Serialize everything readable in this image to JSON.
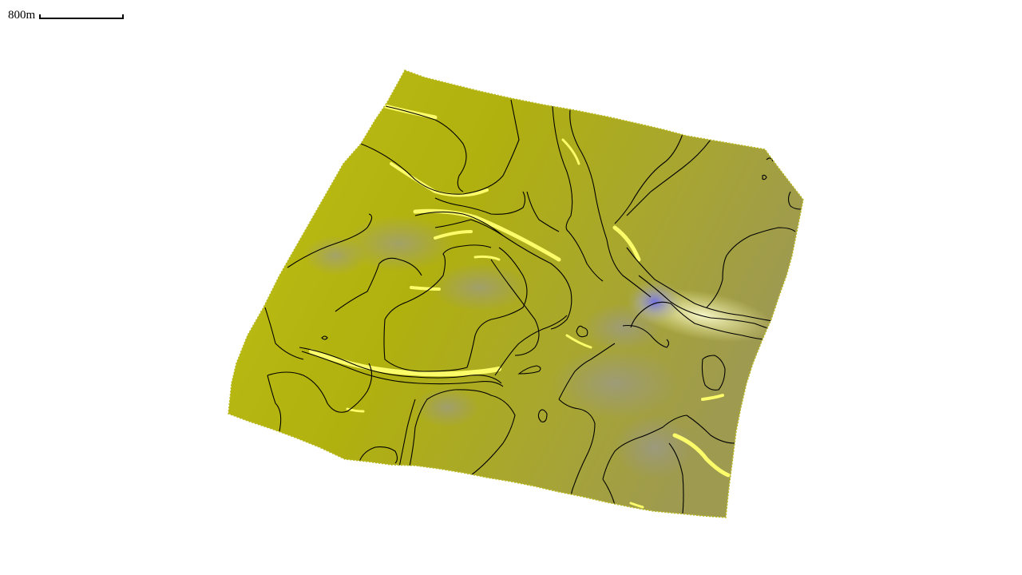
{
  "scale_bar": {
    "label": "800m"
  },
  "terrain": {
    "colors": {
      "base_light": "#c4c414",
      "base_mid": "#b3b30e",
      "base_dark": "#8e8e10",
      "east_tint": "#a09c3c",
      "ridge_highlight": "#fdfd7a",
      "water_blue": "#6f6fe0",
      "grey_patch": "#9c9a7a",
      "contour": "#000000"
    },
    "features": [
      "contour-lines",
      "ridges",
      "water-patch",
      "shaded-relief"
    ]
  }
}
